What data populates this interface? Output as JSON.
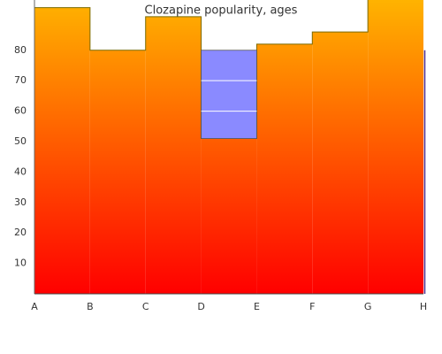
{
  "chart_data": {
    "type": "step-area",
    "title": "Clozapine popularity, ages",
    "categories": [
      "A",
      "B",
      "C",
      "D",
      "E",
      "F",
      "G",
      "H"
    ],
    "values": [
      94,
      80,
      91,
      51,
      82,
      86,
      100,
      null
    ],
    "colors": {
      "bottom": "#ff0000",
      "top": "#ffb300",
      "outline": "#7a6a00",
      "band": "#8a8aff"
    },
    "band": {
      "category": "D",
      "low": 51,
      "high": 80
    },
    "ylim": [
      0,
      96.5
    ],
    "yticks": [
      10,
      20,
      30,
      40,
      50,
      60,
      70,
      80
    ]
  }
}
